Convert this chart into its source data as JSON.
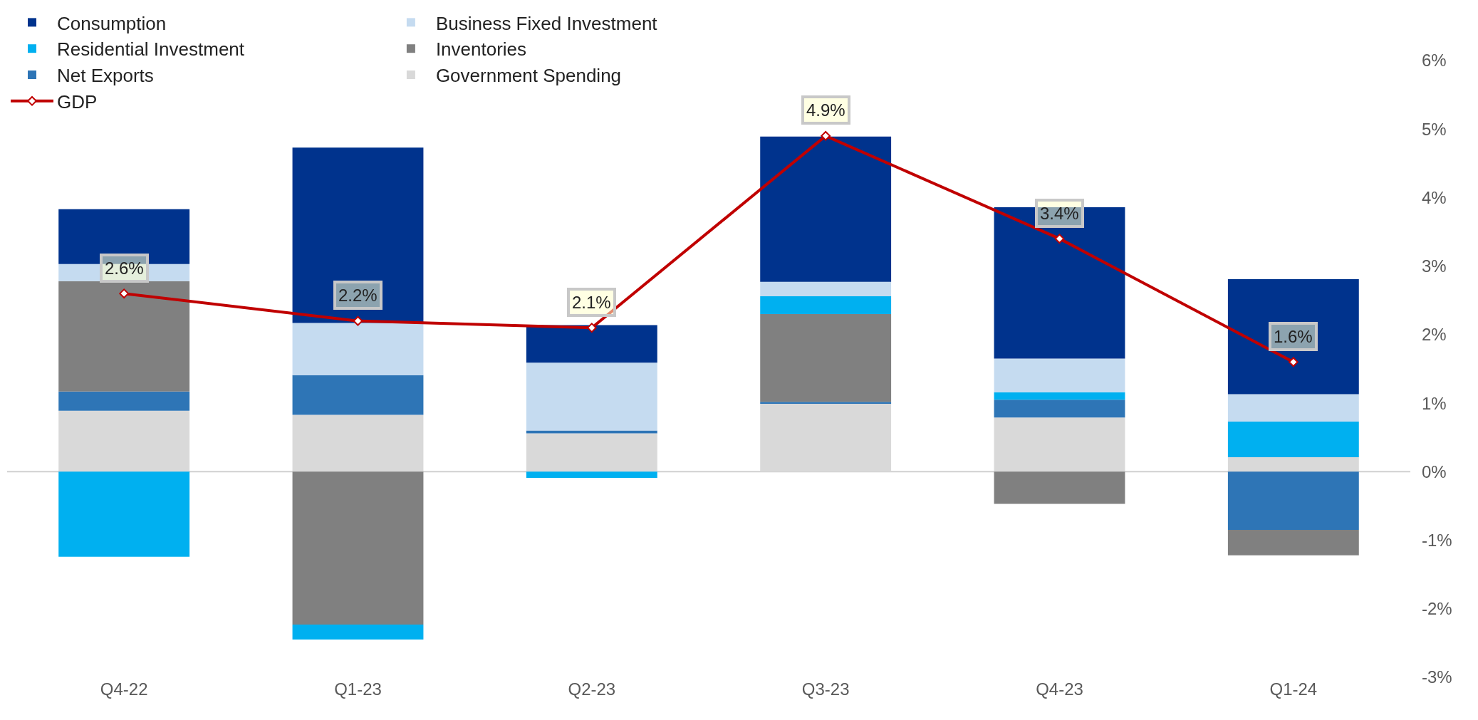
{
  "chart_data": {
    "type": "bar",
    "stacked": true,
    "categories": [
      "Q4-22",
      "Q1-23",
      "Q2-23",
      "Q3-23",
      "Q4-23",
      "Q1-24"
    ],
    "series": [
      {
        "name": "Government Spending",
        "color": "#d9d9d9",
        "values": [
          0.89,
          0.83,
          0.56,
          0.99,
          0.79,
          0.21
        ]
      },
      {
        "name": "Net Exports",
        "color": "#2e75b6",
        "values": [
          0.28,
          0.58,
          0.04,
          0.03,
          0.26,
          -0.85
        ]
      },
      {
        "name": "Inventories",
        "color": "#808080",
        "values": [
          1.61,
          -2.23,
          0,
          1.28,
          -0.47,
          -0.37
        ]
      },
      {
        "name": "Residential Investment",
        "color": "#00b0f0",
        "values": [
          -1.24,
          -0.22,
          -0.09,
          0.26,
          0.11,
          0.52
        ]
      },
      {
        "name": "Business Fixed Investment",
        "color": "#c5dbf0",
        "values": [
          0.25,
          0.76,
          0.99,
          0.21,
          0.49,
          0.4
        ]
      },
      {
        "name": "Consumption",
        "color": "#00338d",
        "values": [
          0.8,
          2.56,
          0.55,
          2.12,
          2.21,
          1.68
        ]
      },
      {
        "name": "GDP",
        "type": "line",
        "color": "#c00000",
        "marker": "diamond",
        "values": [
          2.6,
          2.2,
          2.1,
          4.9,
          3.4,
          1.6
        ],
        "value_labels": [
          "2.6%",
          "2.2%",
          "2.1%",
          "4.9%",
          "3.4%",
          "1.6%"
        ]
      }
    ],
    "ylim": [
      -3,
      6.8
    ],
    "ref_lines": [
      {
        "axis": "y",
        "value": 0,
        "color": "#d0d0d0"
      }
    ],
    "yticks": [
      {
        "value": -3,
        "label": "-3%"
      },
      {
        "value": -2,
        "label": "-2%"
      },
      {
        "value": -1,
        "label": "-1%"
      },
      {
        "value": 0,
        "label": "0%"
      },
      {
        "value": 1,
        "label": "1%"
      },
      {
        "value": 2,
        "label": "2%"
      },
      {
        "value": 3,
        "label": "3%"
      },
      {
        "value": 4,
        "label": "4%"
      },
      {
        "value": 5,
        "label": "5%"
      },
      {
        "value": 6,
        "label": "6%"
      }
    ],
    "grid": false,
    "legend": "top left"
  }
}
